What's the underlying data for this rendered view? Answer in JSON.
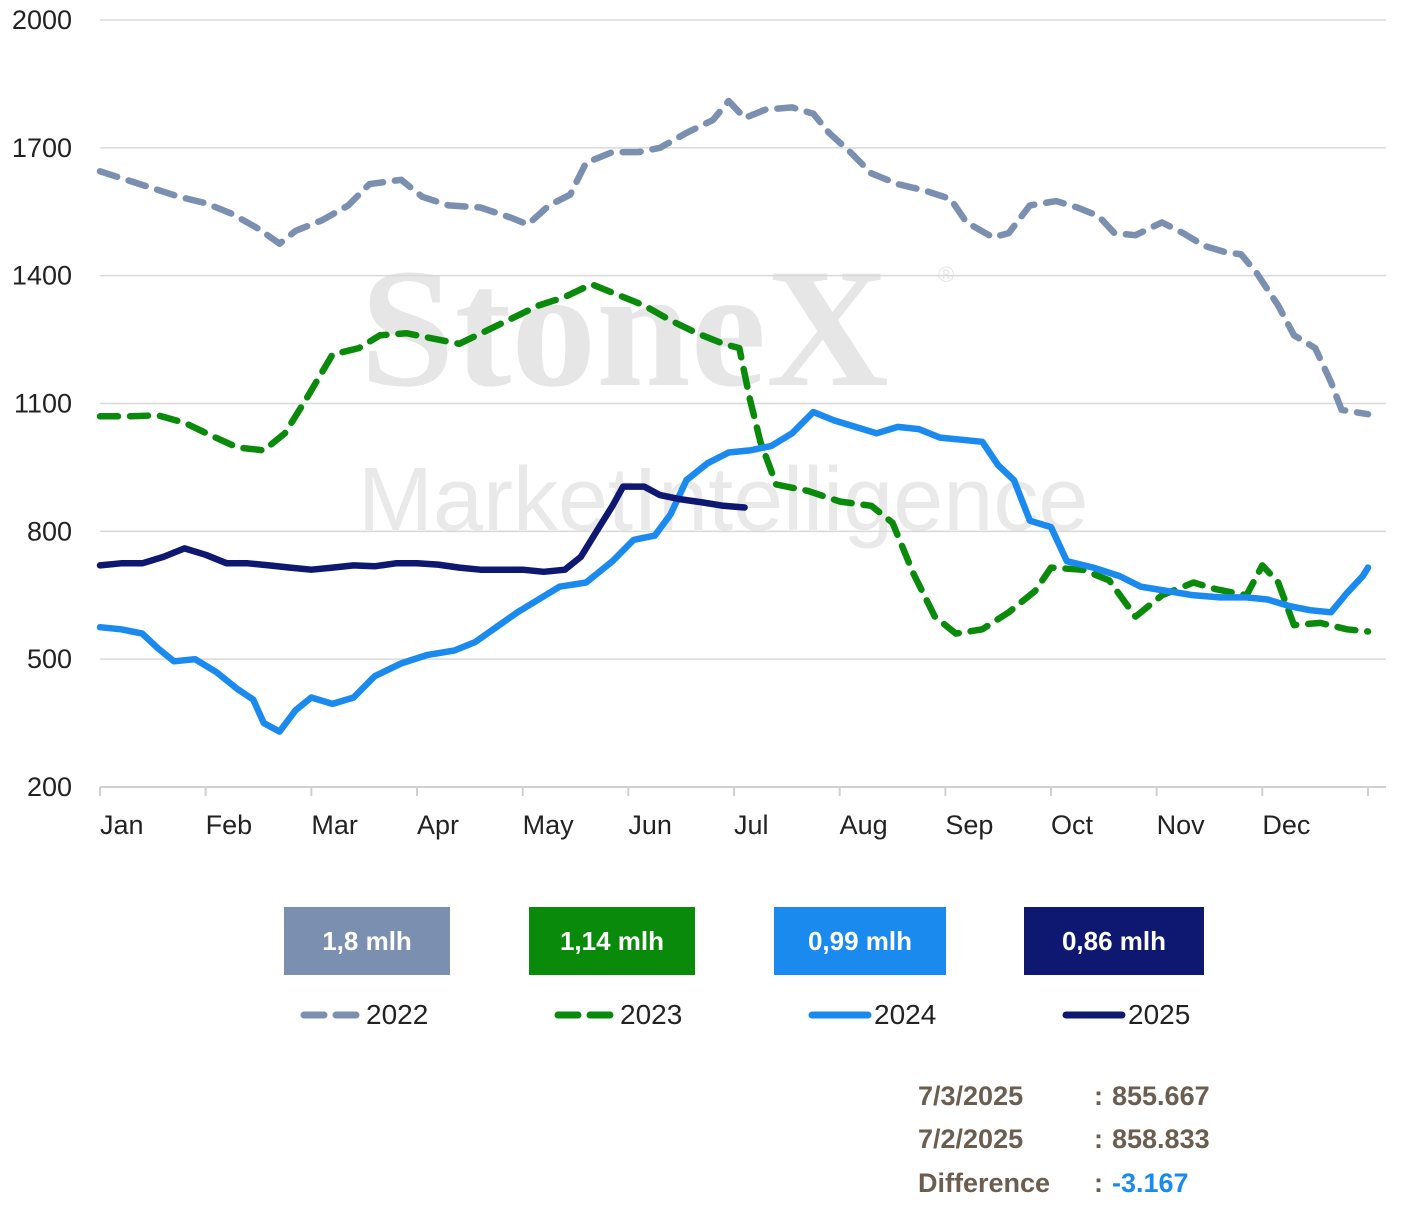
{
  "chart_data": {
    "type": "line",
    "watermark": {
      "brand": "StoneX",
      "registered": "®",
      "subtitle": "MarketIntelligence"
    },
    "ylim": [
      200,
      2000
    ],
    "y_ticks": [
      2000,
      1700,
      1400,
      1100,
      800,
      500,
      200
    ],
    "x_ticks": [
      "Jan",
      "Feb",
      "Mar",
      "Apr",
      "May",
      "Jun",
      "Jul",
      "Aug",
      "Sep",
      "Oct",
      "Nov",
      "Dec"
    ],
    "x_range_months": [
      0,
      12
    ],
    "legend_position": "bottom",
    "badges": [
      {
        "label": "1,8 mlh",
        "color": "#7b90b0"
      },
      {
        "label": "1,14 mlh",
        "color": "#0a8a0a"
      },
      {
        "label": "0,99 mlh",
        "color": "#1a8aee"
      },
      {
        "label": "0,86 mlh",
        "color": "#0e1870"
      }
    ],
    "series": [
      {
        "name": "2022",
        "color": "#7b90b0",
        "style": "dashed",
        "points": [
          [
            0.0,
            1645
          ],
          [
            0.25,
            1625
          ],
          [
            0.5,
            1605
          ],
          [
            0.75,
            1585
          ],
          [
            1.0,
            1570
          ],
          [
            1.25,
            1545
          ],
          [
            1.5,
            1510
          ],
          [
            1.7,
            1475
          ],
          [
            1.85,
            1505
          ],
          [
            2.1,
            1530
          ],
          [
            2.35,
            1565
          ],
          [
            2.55,
            1615
          ],
          [
            2.85,
            1625
          ],
          [
            3.05,
            1585
          ],
          [
            3.3,
            1565
          ],
          [
            3.6,
            1560
          ],
          [
            3.9,
            1535
          ],
          [
            4.05,
            1520
          ],
          [
            4.25,
            1565
          ],
          [
            4.45,
            1590
          ],
          [
            4.6,
            1665
          ],
          [
            4.85,
            1690
          ],
          [
            5.1,
            1690
          ],
          [
            5.3,
            1700
          ],
          [
            5.55,
            1735
          ],
          [
            5.8,
            1765
          ],
          [
            5.95,
            1810
          ],
          [
            6.1,
            1770
          ],
          [
            6.3,
            1790
          ],
          [
            6.55,
            1795
          ],
          [
            6.75,
            1780
          ],
          [
            6.9,
            1735
          ],
          [
            7.1,
            1690
          ],
          [
            7.3,
            1640
          ],
          [
            7.55,
            1615
          ],
          [
            7.8,
            1600
          ],
          [
            8.05,
            1580
          ],
          [
            8.2,
            1525
          ],
          [
            8.45,
            1490
          ],
          [
            8.6,
            1500
          ],
          [
            8.8,
            1565
          ],
          [
            9.05,
            1575
          ],
          [
            9.25,
            1560
          ],
          [
            9.45,
            1540
          ],
          [
            9.6,
            1500
          ],
          [
            9.8,
            1495
          ],
          [
            10.05,
            1525
          ],
          [
            10.25,
            1500
          ],
          [
            10.45,
            1470
          ],
          [
            10.65,
            1455
          ],
          [
            10.8,
            1450
          ],
          [
            10.95,
            1405
          ],
          [
            11.15,
            1330
          ],
          [
            11.3,
            1260
          ],
          [
            11.5,
            1230
          ],
          [
            11.65,
            1150
          ],
          [
            11.75,
            1085
          ],
          [
            12.0,
            1075
          ]
        ]
      },
      {
        "name": "2023",
        "color": "#0a8a0a",
        "style": "dashed",
        "points": [
          [
            0.0,
            1070
          ],
          [
            0.25,
            1070
          ],
          [
            0.55,
            1072
          ],
          [
            0.8,
            1055
          ],
          [
            1.05,
            1025
          ],
          [
            1.3,
            997
          ],
          [
            1.55,
            990
          ],
          [
            1.75,
            1030
          ],
          [
            1.95,
            1110
          ],
          [
            2.2,
            1215
          ],
          [
            2.45,
            1230
          ],
          [
            2.65,
            1260
          ],
          [
            2.9,
            1265
          ],
          [
            3.1,
            1255
          ],
          [
            3.4,
            1240
          ],
          [
            3.65,
            1270
          ],
          [
            3.9,
            1300
          ],
          [
            4.15,
            1330
          ],
          [
            4.4,
            1350
          ],
          [
            4.65,
            1380
          ],
          [
            4.9,
            1355
          ],
          [
            5.15,
            1330
          ],
          [
            5.4,
            1295
          ],
          [
            5.65,
            1265
          ],
          [
            5.9,
            1240
          ],
          [
            6.05,
            1230
          ],
          [
            6.15,
            1110
          ],
          [
            6.25,
            1010
          ],
          [
            6.4,
            910
          ],
          [
            6.7,
            895
          ],
          [
            7.0,
            870
          ],
          [
            7.3,
            860
          ],
          [
            7.5,
            820
          ],
          [
            7.7,
            700
          ],
          [
            7.9,
            600
          ],
          [
            8.1,
            560
          ],
          [
            8.35,
            570
          ],
          [
            8.6,
            610
          ],
          [
            8.85,
            660
          ],
          [
            9.0,
            715
          ],
          [
            9.3,
            710
          ],
          [
            9.55,
            685
          ],
          [
            9.8,
            600
          ],
          [
            10.05,
            650
          ],
          [
            10.35,
            680
          ],
          [
            10.55,
            665
          ],
          [
            10.85,
            650
          ],
          [
            11.0,
            720
          ],
          [
            11.15,
            680
          ],
          [
            11.3,
            580
          ],
          [
            11.55,
            585
          ],
          [
            11.8,
            570
          ],
          [
            12.0,
            565
          ]
        ]
      },
      {
        "name": "2024",
        "color": "#1a8aee",
        "style": "solid",
        "points": [
          [
            0.0,
            575
          ],
          [
            0.2,
            570
          ],
          [
            0.4,
            560
          ],
          [
            0.55,
            525
          ],
          [
            0.7,
            495
          ],
          [
            0.9,
            500
          ],
          [
            1.1,
            470
          ],
          [
            1.3,
            430
          ],
          [
            1.45,
            405
          ],
          [
            1.55,
            350
          ],
          [
            1.7,
            330
          ],
          [
            1.85,
            380
          ],
          [
            2.0,
            410
          ],
          [
            2.2,
            395
          ],
          [
            2.4,
            410
          ],
          [
            2.6,
            460
          ],
          [
            2.85,
            490
          ],
          [
            3.1,
            510
          ],
          [
            3.35,
            520
          ],
          [
            3.55,
            540
          ],
          [
            3.75,
            575
          ],
          [
            3.95,
            610
          ],
          [
            4.15,
            640
          ],
          [
            4.35,
            670
          ],
          [
            4.6,
            680
          ],
          [
            4.85,
            730
          ],
          [
            5.05,
            780
          ],
          [
            5.25,
            790
          ],
          [
            5.4,
            840
          ],
          [
            5.55,
            920
          ],
          [
            5.75,
            960
          ],
          [
            5.95,
            985
          ],
          [
            6.15,
            990
          ],
          [
            6.35,
            1000
          ],
          [
            6.55,
            1030
          ],
          [
            6.75,
            1080
          ],
          [
            6.95,
            1060
          ],
          [
            7.15,
            1045
          ],
          [
            7.35,
            1030
          ],
          [
            7.55,
            1045
          ],
          [
            7.75,
            1040
          ],
          [
            7.95,
            1020
          ],
          [
            8.15,
            1015
          ],
          [
            8.35,
            1010
          ],
          [
            8.5,
            955
          ],
          [
            8.65,
            920
          ],
          [
            8.8,
            825
          ],
          [
            9.0,
            810
          ],
          [
            9.15,
            730
          ],
          [
            9.4,
            715
          ],
          [
            9.65,
            695
          ],
          [
            9.85,
            670
          ],
          [
            10.1,
            660
          ],
          [
            10.35,
            650
          ],
          [
            10.6,
            645
          ],
          [
            10.85,
            645
          ],
          [
            11.05,
            640
          ],
          [
            11.25,
            625
          ],
          [
            11.45,
            615
          ],
          [
            11.65,
            610
          ],
          [
            11.8,
            655
          ],
          [
            11.95,
            695
          ],
          [
            12.0,
            715
          ]
        ]
      },
      {
        "name": "2025",
        "color": "#0e1870",
        "style": "solid",
        "points": [
          [
            0.0,
            720
          ],
          [
            0.2,
            725
          ],
          [
            0.4,
            725
          ],
          [
            0.6,
            740
          ],
          [
            0.8,
            760
          ],
          [
            1.0,
            745
          ],
          [
            1.2,
            725
          ],
          [
            1.4,
            725
          ],
          [
            1.6,
            720
          ],
          [
            1.8,
            715
          ],
          [
            2.0,
            710
          ],
          [
            2.2,
            715
          ],
          [
            2.4,
            720
          ],
          [
            2.6,
            718
          ],
          [
            2.8,
            725
          ],
          [
            3.0,
            725
          ],
          [
            3.2,
            722
          ],
          [
            3.4,
            715
          ],
          [
            3.6,
            710
          ],
          [
            3.8,
            710
          ],
          [
            4.0,
            710
          ],
          [
            4.2,
            705
          ],
          [
            4.4,
            710
          ],
          [
            4.55,
            740
          ],
          [
            4.7,
            800
          ],
          [
            4.85,
            860
          ],
          [
            4.95,
            905
          ],
          [
            5.15,
            905
          ],
          [
            5.3,
            885
          ],
          [
            5.5,
            875
          ],
          [
            5.7,
            868
          ],
          [
            5.9,
            860
          ],
          [
            6.1,
            856
          ]
        ]
      }
    ]
  },
  "summary": [
    {
      "label": "7/3/2025",
      "colon": ":",
      "value": "855.667",
      "value_color": "#6b5d4f"
    },
    {
      "label": "7/2/2025",
      "colon": ":",
      "value": "858.833",
      "value_color": "#6b5d4f"
    },
    {
      "label": "Difference",
      "colon": ":",
      "value": "-3.167",
      "value_color": "#1a8aee"
    }
  ]
}
